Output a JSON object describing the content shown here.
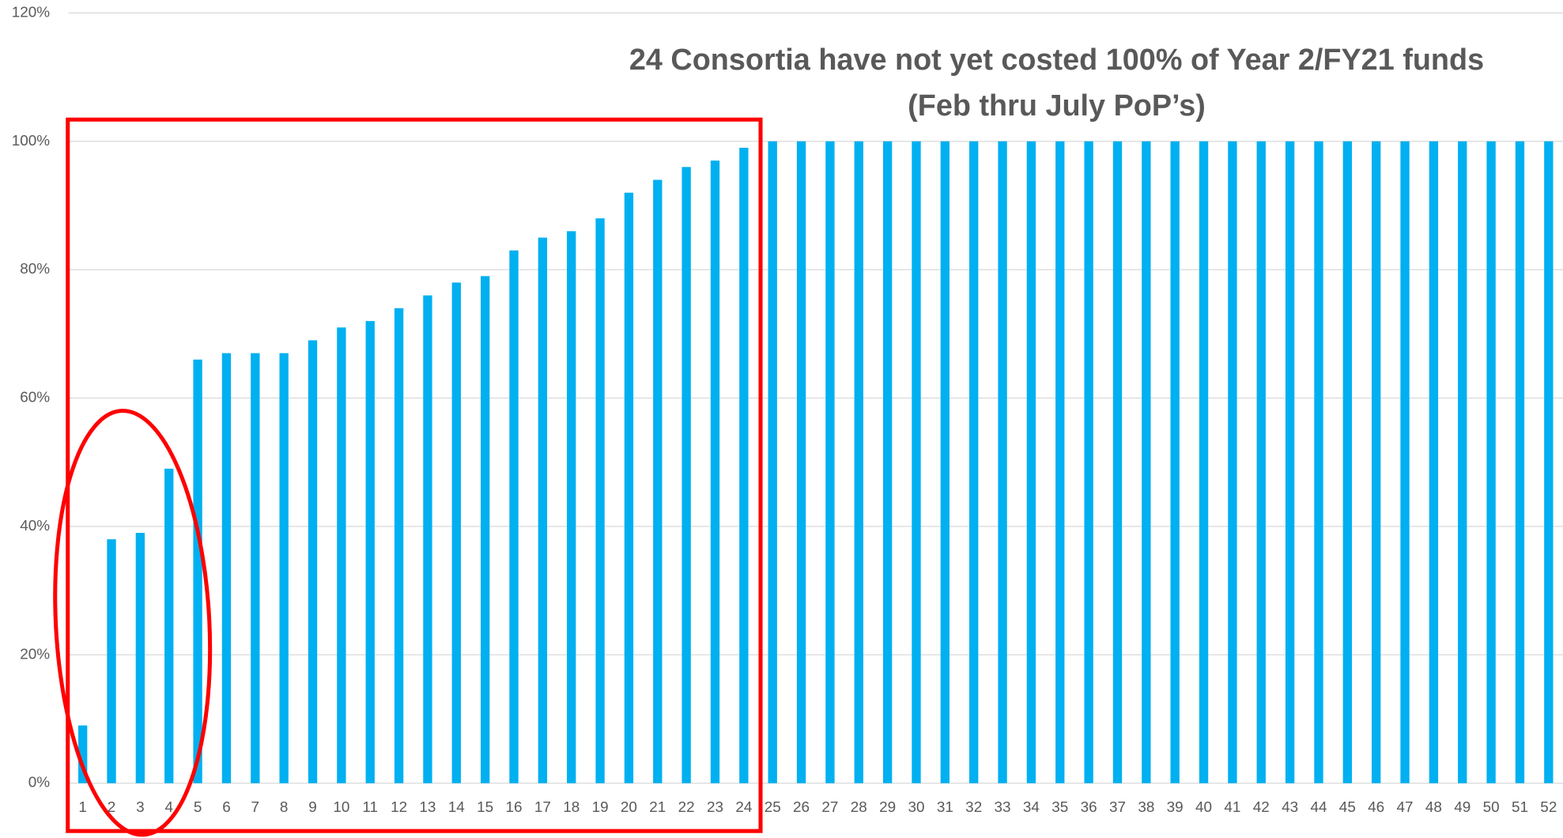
{
  "chart_data": {
    "type": "bar",
    "title": "24 Consortia have not yet costed 100% of Year 2/FY21 funds",
    "subtitle": "(Feb thru July PoP’s)",
    "categories": [
      "1",
      "2",
      "3",
      "4",
      "5",
      "6",
      "7",
      "8",
      "9",
      "10",
      "11",
      "12",
      "13",
      "14",
      "15",
      "16",
      "17",
      "18",
      "19",
      "20",
      "21",
      "22",
      "23",
      "24",
      "25",
      "26",
      "27",
      "28",
      "29",
      "30",
      "31",
      "32",
      "33",
      "34",
      "35",
      "36",
      "37",
      "38",
      "39",
      "40",
      "41",
      "42",
      "43",
      "44",
      "45",
      "46",
      "47",
      "48",
      "49",
      "50",
      "51",
      "52"
    ],
    "values": [
      9,
      38,
      39,
      49,
      66,
      67,
      67,
      67,
      69,
      71,
      72,
      74,
      76,
      78,
      79,
      83,
      85,
      86,
      88,
      92,
      94,
      96,
      97,
      99,
      100,
      100,
      100,
      100,
      100,
      100,
      100,
      100,
      100,
      100,
      100,
      100,
      100,
      100,
      100,
      100,
      100,
      100,
      100,
      100,
      100,
      100,
      100,
      100,
      100,
      100,
      100,
      100
    ],
    "color": "#00b0f0",
    "ylim": [
      0,
      120
    ],
    "yticks": [
      {
        "value": 0,
        "label": "0%"
      },
      {
        "value": 20,
        "label": "20%"
      },
      {
        "value": 40,
        "label": "40%"
      },
      {
        "value": 60,
        "label": "60%"
      },
      {
        "value": 80,
        "label": "80%"
      },
      {
        "value": 100,
        "label": "100%"
      },
      {
        "value": 120,
        "label": "120%"
      }
    ],
    "grid": true
  }
}
